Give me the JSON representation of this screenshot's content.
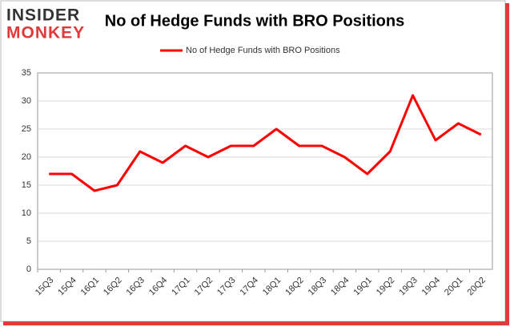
{
  "logo": {
    "line1": "INSIDER",
    "line2": "MONKEY"
  },
  "chart_data": {
    "type": "line",
    "title": "No of Hedge Funds with BRO Positions",
    "categories": [
      "15Q3",
      "15Q4",
      "16Q1",
      "16Q2",
      "16Q3",
      "16Q4",
      "17Q1",
      "17Q2",
      "17Q3",
      "17Q4",
      "18Q1",
      "18Q2",
      "18Q3",
      "18Q4",
      "19Q1",
      "19Q2",
      "19Q3",
      "19Q4",
      "20Q1",
      "20Q2"
    ],
    "series": [
      {
        "name": "No of Hedge Funds with BRO Positions",
        "color": "#ff0000",
        "values": [
          17,
          17,
          14,
          15,
          21,
          19,
          22,
          20,
          22,
          22,
          25,
          22,
          22,
          20,
          17,
          21,
          31,
          23,
          26,
          24
        ]
      }
    ],
    "ylim": [
      0,
      35
    ],
    "yticks": [
      0,
      5,
      10,
      15,
      20,
      25,
      30,
      35
    ],
    "grid": true,
    "legend": "top"
  }
}
